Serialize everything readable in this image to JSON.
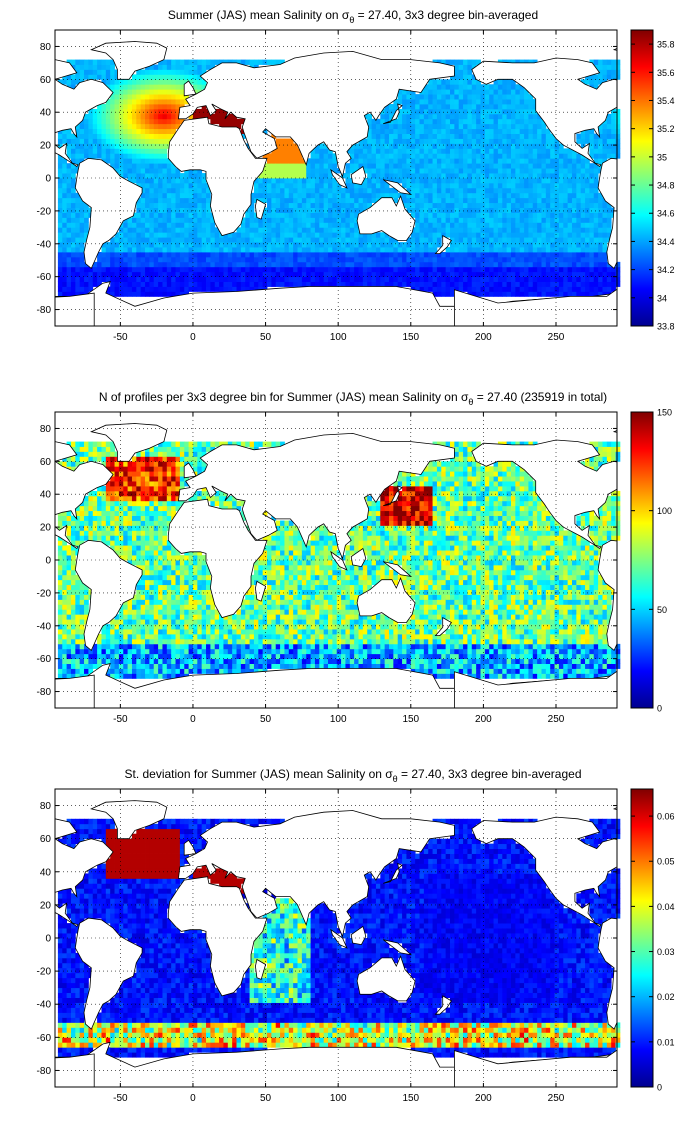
{
  "chart_data": [
    {
      "type": "heatmap",
      "title_prefix": "Summer (JAS) mean Salinity on ",
      "title_symbol": "σ",
      "title_subscript": "θ",
      "title_suffix": " = 27.40, 3x3 degree bin-averaged",
      "xlabel": "",
      "ylabel": "",
      "xlim": [
        -95,
        292
      ],
      "ylim": [
        -90,
        90
      ],
      "xticks": [
        -50,
        0,
        50,
        100,
        150,
        200,
        250
      ],
      "yticks": [
        -80,
        -60,
        -40,
        -20,
        0,
        20,
        40,
        60,
        80
      ],
      "grid": "dotted",
      "colorbar": {
        "position": "right",
        "colormap": "jet",
        "range": [
          33.8,
          35.9
        ],
        "ticks": [
          "33.8",
          "34",
          "34.2",
          "34.4",
          "34.6",
          "34.8",
          "35",
          "35.2",
          "35.4",
          "35.6",
          "35.8"
        ]
      }
    },
    {
      "type": "heatmap",
      "title_prefix": "N of profiles per 3x3 degree bin for Summer (JAS) mean Salinity on ",
      "title_symbol": "σ",
      "title_subscript": "θ",
      "title_suffix": " = 27.40 (235919 in total)",
      "xlabel": "",
      "ylabel": "",
      "xlim": [
        -95,
        292
      ],
      "ylim": [
        -90,
        90
      ],
      "xticks": [
        -50,
        0,
        50,
        100,
        150,
        200,
        250
      ],
      "yticks": [
        -80,
        -60,
        -40,
        -20,
        0,
        20,
        40,
        60,
        80
      ],
      "grid": "dotted",
      "colorbar": {
        "position": "right",
        "colormap": "jet",
        "range": [
          0,
          150
        ],
        "ticks": [
          "0",
          "50",
          "100",
          "150"
        ]
      }
    },
    {
      "type": "heatmap",
      "title_prefix": "St. deviation for Summer (JAS) mean Salinity on ",
      "title_symbol": "σ",
      "title_subscript": "θ",
      "title_suffix": " = 27.40, 3x3 degree bin-averaged",
      "xlabel": "",
      "ylabel": "",
      "xlim": [
        -95,
        292
      ],
      "ylim": [
        -90,
        90
      ],
      "xticks": [
        -50,
        0,
        50,
        100,
        150,
        200,
        250
      ],
      "yticks": [
        -80,
        -60,
        -40,
        -20,
        0,
        20,
        40,
        60,
        80
      ],
      "grid": "dotted",
      "colorbar": {
        "position": "right",
        "colormap": "jet",
        "range": [
          0,
          0.066
        ],
        "ticks": [
          "0",
          "0.01",
          "0.02",
          "0.03",
          "0.04",
          "0.05",
          "0.06"
        ]
      }
    }
  ]
}
